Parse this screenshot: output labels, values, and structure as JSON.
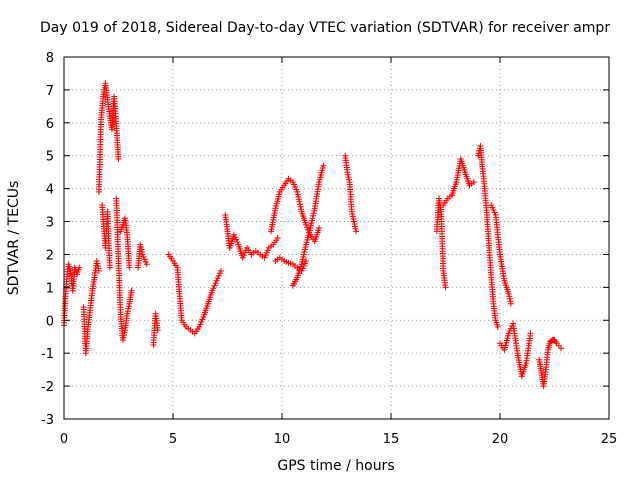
{
  "chart_data": {
    "type": "scatter",
    "title": "Day 019 of 2018, Sidereal Day-to-day VTEC variation (SDTVAR) for receiver ampr",
    "xlabel": "GPS time / hours",
    "ylabel": "SDTVAR / TECUs",
    "xlim": [
      0,
      25
    ],
    "ylim": [
      -3,
      8
    ],
    "xticks": [
      0,
      5,
      10,
      15,
      20,
      25
    ],
    "yticks": [
      -3,
      -2,
      -1,
      0,
      1,
      2,
      3,
      4,
      5,
      6,
      7,
      8
    ],
    "grid": true,
    "marker": "+",
    "color": "#ff0000",
    "series": [
      {
        "name": "s0",
        "x": [
          0.0,
          0.1,
          0.2,
          0.3,
          0.4,
          0.5,
          0.6,
          0.7
        ],
        "y": [
          -0.15,
          1.1,
          1.7,
          1.5,
          0.9,
          1.6,
          1.4,
          1.6
        ]
      },
      {
        "name": "s1",
        "x": [
          0.9,
          1.0,
          1.1,
          1.2,
          1.3,
          1.4,
          1.5,
          1.6
        ],
        "y": [
          0.4,
          -1.0,
          -0.2,
          0.3,
          0.9,
          1.3,
          1.8,
          1.5
        ]
      },
      {
        "name": "s2",
        "x": [
          1.6,
          1.7,
          1.8,
          1.9,
          2.0,
          2.1,
          2.2,
          2.3,
          2.4,
          2.5
        ],
        "y": [
          3.9,
          6.1,
          6.8,
          7.2,
          6.7,
          6.2,
          5.8,
          6.8,
          5.9,
          4.9
        ]
      },
      {
        "name": "s3",
        "x": [
          1.75,
          1.9,
          2.0,
          2.1
        ],
        "y": [
          3.5,
          2.2,
          3.3,
          1.6
        ]
      },
      {
        "name": "s4",
        "x": [
          2.4,
          2.5,
          2.6,
          2.7,
          2.8,
          2.9,
          3.0,
          3.1
        ],
        "y": [
          3.7,
          1.8,
          0.1,
          -0.6,
          -0.3,
          0.2,
          0.5,
          0.9
        ]
      },
      {
        "name": "s5",
        "x": [
          2.6,
          2.8,
          2.9,
          3.0
        ],
        "y": [
          2.7,
          3.1,
          2.6,
          1.6
        ]
      },
      {
        "name": "s6",
        "x": [
          3.4,
          3.5,
          3.6,
          3.8
        ],
        "y": [
          1.6,
          2.3,
          2.0,
          1.7
        ]
      },
      {
        "name": "s7",
        "x": [
          4.1,
          4.2,
          4.3
        ],
        "y": [
          -0.75,
          0.2,
          -0.3
        ]
      },
      {
        "name": "s8",
        "x": [
          4.8,
          5.0,
          5.2,
          5.4,
          5.6,
          5.8,
          6.0,
          6.2,
          6.4,
          6.6,
          6.8,
          7.0,
          7.2
        ],
        "y": [
          2.0,
          1.8,
          1.6,
          0.0,
          -0.2,
          -0.3,
          -0.4,
          -0.2,
          0.1,
          0.5,
          0.9,
          1.2,
          1.5
        ]
      },
      {
        "name": "s9",
        "x": [
          7.4,
          7.6,
          7.8,
          8.0,
          8.2,
          8.4,
          8.6,
          8.8,
          9.0,
          9.2,
          9.4,
          9.6,
          9.8
        ],
        "y": [
          3.2,
          2.2,
          2.6,
          2.3,
          1.9,
          2.2,
          2.0,
          2.1,
          2.0,
          1.9,
          2.2,
          2.3,
          2.5
        ]
      },
      {
        "name": "s10",
        "x": [
          9.5,
          9.7,
          9.9,
          10.1,
          10.3,
          10.5,
          10.7,
          10.9,
          11.1,
          11.3,
          11.5,
          11.7
        ],
        "y": [
          2.7,
          3.4,
          3.9,
          4.1,
          4.3,
          4.2,
          3.9,
          3.3,
          2.9,
          2.6,
          2.4,
          2.8
        ]
      },
      {
        "name": "s11",
        "x": [
          9.7,
          9.9,
          10.1,
          10.3,
          10.5,
          10.7,
          10.9,
          11.1
        ],
        "y": [
          1.8,
          1.9,
          1.8,
          1.75,
          1.7,
          1.6,
          1.5,
          1.8
        ]
      },
      {
        "name": "s12",
        "x": [
          10.5,
          10.7,
          10.9,
          11.1,
          11.3,
          11.5,
          11.7,
          11.9
        ],
        "y": [
          1.05,
          1.3,
          1.7,
          2.3,
          2.8,
          3.4,
          4.2,
          4.7
        ]
      },
      {
        "name": "s13",
        "x": [
          12.9,
          13.0,
          13.1,
          13.2,
          13.3,
          13.4
        ],
        "y": [
          5.0,
          4.5,
          4.2,
          3.3,
          3.0,
          2.7
        ]
      },
      {
        "name": "s14",
        "x": [
          17.1,
          17.2,
          17.3,
          17.4,
          17.5
        ],
        "y": [
          2.7,
          3.7,
          3.3,
          1.5,
          1.0
        ]
      },
      {
        "name": "s15",
        "x": [
          17.4,
          17.6,
          17.8,
          18.0,
          18.2,
          18.4,
          18.6,
          18.8
        ],
        "y": [
          3.5,
          3.7,
          3.8,
          4.2,
          4.9,
          4.5,
          4.1,
          4.2
        ]
      },
      {
        "name": "s16",
        "x": [
          19.0,
          19.1,
          19.2,
          19.3,
          19.4,
          19.5,
          19.6,
          19.7,
          19.8,
          19.9
        ],
        "y": [
          5.0,
          5.3,
          4.6,
          4.0,
          3.2,
          2.2,
          1.3,
          0.5,
          0.0,
          -0.2
        ]
      },
      {
        "name": "s17",
        "x": [
          19.6,
          19.8,
          20.0,
          20.2,
          20.4,
          20.5
        ],
        "y": [
          3.5,
          3.2,
          2.0,
          1.2,
          0.8,
          0.5
        ]
      },
      {
        "name": "s18",
        "x": [
          20.0,
          20.2,
          20.4,
          20.6,
          20.8,
          21.0,
          21.2,
          21.4
        ],
        "y": [
          -0.7,
          -0.9,
          -0.4,
          -0.1,
          -1.0,
          -1.7,
          -1.3,
          -0.4
        ]
      },
      {
        "name": "s19",
        "x": [
          21.8,
          21.9,
          22.0,
          22.1,
          22.2,
          22.3,
          22.4,
          22.5,
          22.6,
          22.8
        ],
        "y": [
          -1.2,
          -1.6,
          -2.0,
          -1.5,
          -0.9,
          -0.65,
          -0.6,
          -0.6,
          -0.7,
          -0.85
        ]
      }
    ]
  }
}
